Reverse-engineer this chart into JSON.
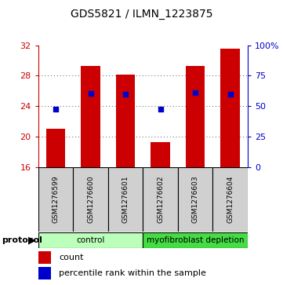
{
  "title": "GDS5821 / ILMN_1223875",
  "samples": [
    "GSM1276599",
    "GSM1276600",
    "GSM1276601",
    "GSM1276602",
    "GSM1276603",
    "GSM1276604"
  ],
  "counts": [
    21.0,
    29.3,
    28.1,
    19.3,
    29.3,
    31.5
  ],
  "percentile_ranks": [
    47.8,
    60.5,
    59.5,
    47.5,
    61.0,
    60.0
  ],
  "ylim_left": [
    16,
    32
  ],
  "ylim_right": [
    0,
    100
  ],
  "yticks_left": [
    16,
    20,
    24,
    28,
    32
  ],
  "yticks_right": [
    0,
    25,
    50,
    75,
    100
  ],
  "ytick_labels_right": [
    "0",
    "25",
    "50",
    "75",
    "100%"
  ],
  "bar_color": "#cc0000",
  "dot_color": "#0000cc",
  "bar_bottom": 16,
  "groups": [
    {
      "label": "control",
      "indices": [
        0,
        1,
        2
      ],
      "color": "#bbffbb"
    },
    {
      "label": "myofibroblast depletion",
      "indices": [
        3,
        4,
        5
      ],
      "color": "#44dd44"
    }
  ],
  "protocol_label": "protocol",
  "legend_count_label": "count",
  "legend_pct_label": "percentile rank within the sample",
  "grid_color": "#555555",
  "axis_color_left": "#cc0000",
  "axis_color_right": "#0000cc",
  "bg_color": "#ffffff",
  "plot_bg": "#ffffff",
  "sample_box_color": "#d0d0d0",
  "bar_width": 0.55,
  "dot_size": 22
}
